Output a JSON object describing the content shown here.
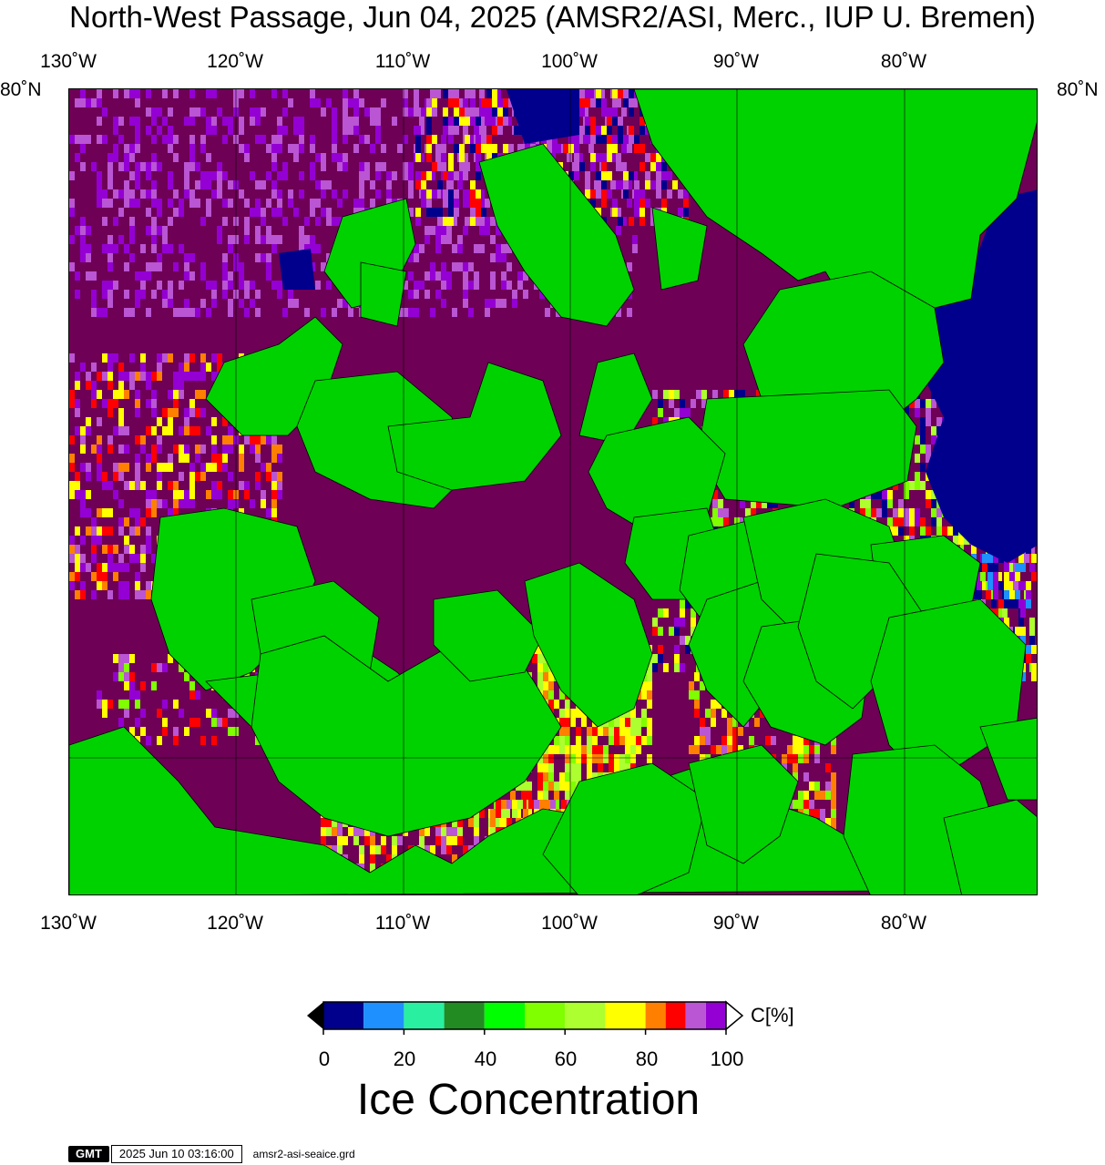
{
  "title": "North-West Passage, Jun 04, 2025 (AMSR2/ASI, Merc., IUP U. Bremen)",
  "longitude_labels": [
    "130˚W",
    "120˚W",
    "110˚W",
    "100˚W",
    "90˚W",
    "80˚W"
  ],
  "latitude_labels": {
    "left": "80˚N",
    "right": "80˚N"
  },
  "colorbar": {
    "colors": [
      "#00008c",
      "#1e90ff",
      "#28f0a0",
      "#228b22",
      "#00ff00",
      "#7fff00",
      "#adff2f",
      "#ffff00",
      "#ff7f00",
      "#ff0000",
      "#ba55d3",
      "#9400d3"
    ],
    "tick_labels": [
      "0",
      "20",
      "40",
      "60",
      "80",
      "100"
    ],
    "unit_label": "C[%]",
    "title": "Ice Concentration"
  },
  "map_colors": {
    "land": "#00d200",
    "high_ice": "#6e0055",
    "open_water": "#00008c",
    "gridline": "#000000"
  },
  "stamp": {
    "logo": "GMT",
    "date": "2025 Jun 10 03:16:00",
    "file": "amsr2-asi-seaice.grd"
  }
}
